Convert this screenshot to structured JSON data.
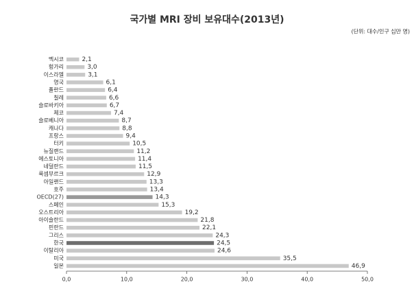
{
  "chart_data": {
    "type": "bar",
    "orientation": "horizontal",
    "title": "국가별 MRI 장비 보유대수(2013년)",
    "subtitle": "(단위: 대수/인구 십만 명)",
    "categories": [
      "멕시코",
      "헝가리",
      "이스라엘",
      "영국",
      "폴란드",
      "칠레",
      "슬로바키아",
      "체코",
      "슬로베니아",
      "캐나다",
      "프랑스",
      "터키",
      "뉴질랜드",
      "에스토니아",
      "네덜란드",
      "룩셈부르크",
      "아일랜드",
      "호주",
      "OECD(27)",
      "스페인",
      "오스트리아",
      "아이슬란드",
      "핀란드",
      "그리스",
      "한국",
      "이탈리아",
      "미국",
      "일본"
    ],
    "values": [
      2.1,
      3.0,
      3.1,
      6.1,
      6.4,
      6.6,
      6.7,
      7.4,
      8.7,
      8.8,
      9.4,
      10.5,
      11.2,
      11.4,
      11.5,
      12.9,
      13.3,
      13.4,
      14.3,
      15.3,
      19.2,
      21.8,
      22.1,
      24.3,
      24.5,
      24.6,
      35.5,
      46.9
    ],
    "value_labels": [
      "2,1",
      "3,0",
      "3,1",
      "6,1",
      "6,4",
      "6,6",
      "6,7",
      "7,4",
      "8,7",
      "8,8",
      "9,4",
      "10,5",
      "11,2",
      "11,4",
      "11,5",
      "12,9",
      "13,3",
      "13,4",
      "14,3",
      "15,3",
      "19,2",
      "21,8",
      "22,1",
      "24,3",
      "24,5",
      "24,6",
      "35,5",
      "46,9"
    ],
    "colors": [
      "#c8c8c8",
      "#c8c8c8",
      "#c8c8c8",
      "#c8c8c8",
      "#c8c8c8",
      "#c8c8c8",
      "#c8c8c8",
      "#c8c8c8",
      "#c8c8c8",
      "#c8c8c8",
      "#c8c8c8",
      "#c8c8c8",
      "#c8c8c8",
      "#c8c8c8",
      "#c8c8c8",
      "#c8c8c8",
      "#c8c8c8",
      "#c8c8c8",
      "#999999",
      "#c8c8c8",
      "#c8c8c8",
      "#c8c8c8",
      "#c8c8c8",
      "#c8c8c8",
      "#6e6e6e",
      "#c8c8c8",
      "#c8c8c8",
      "#c8c8c8"
    ],
    "xlim": [
      0,
      50
    ],
    "xticks": [
      {
        "value": 0,
        "label": "0,0"
      },
      {
        "value": 10,
        "label": "10,0"
      },
      {
        "value": 20,
        "label": "20,0"
      },
      {
        "value": 30,
        "label": "30,0"
      },
      {
        "value": 40,
        "label": "40,0"
      },
      {
        "value": 50,
        "label": "50,0"
      }
    ],
    "grid": false
  }
}
